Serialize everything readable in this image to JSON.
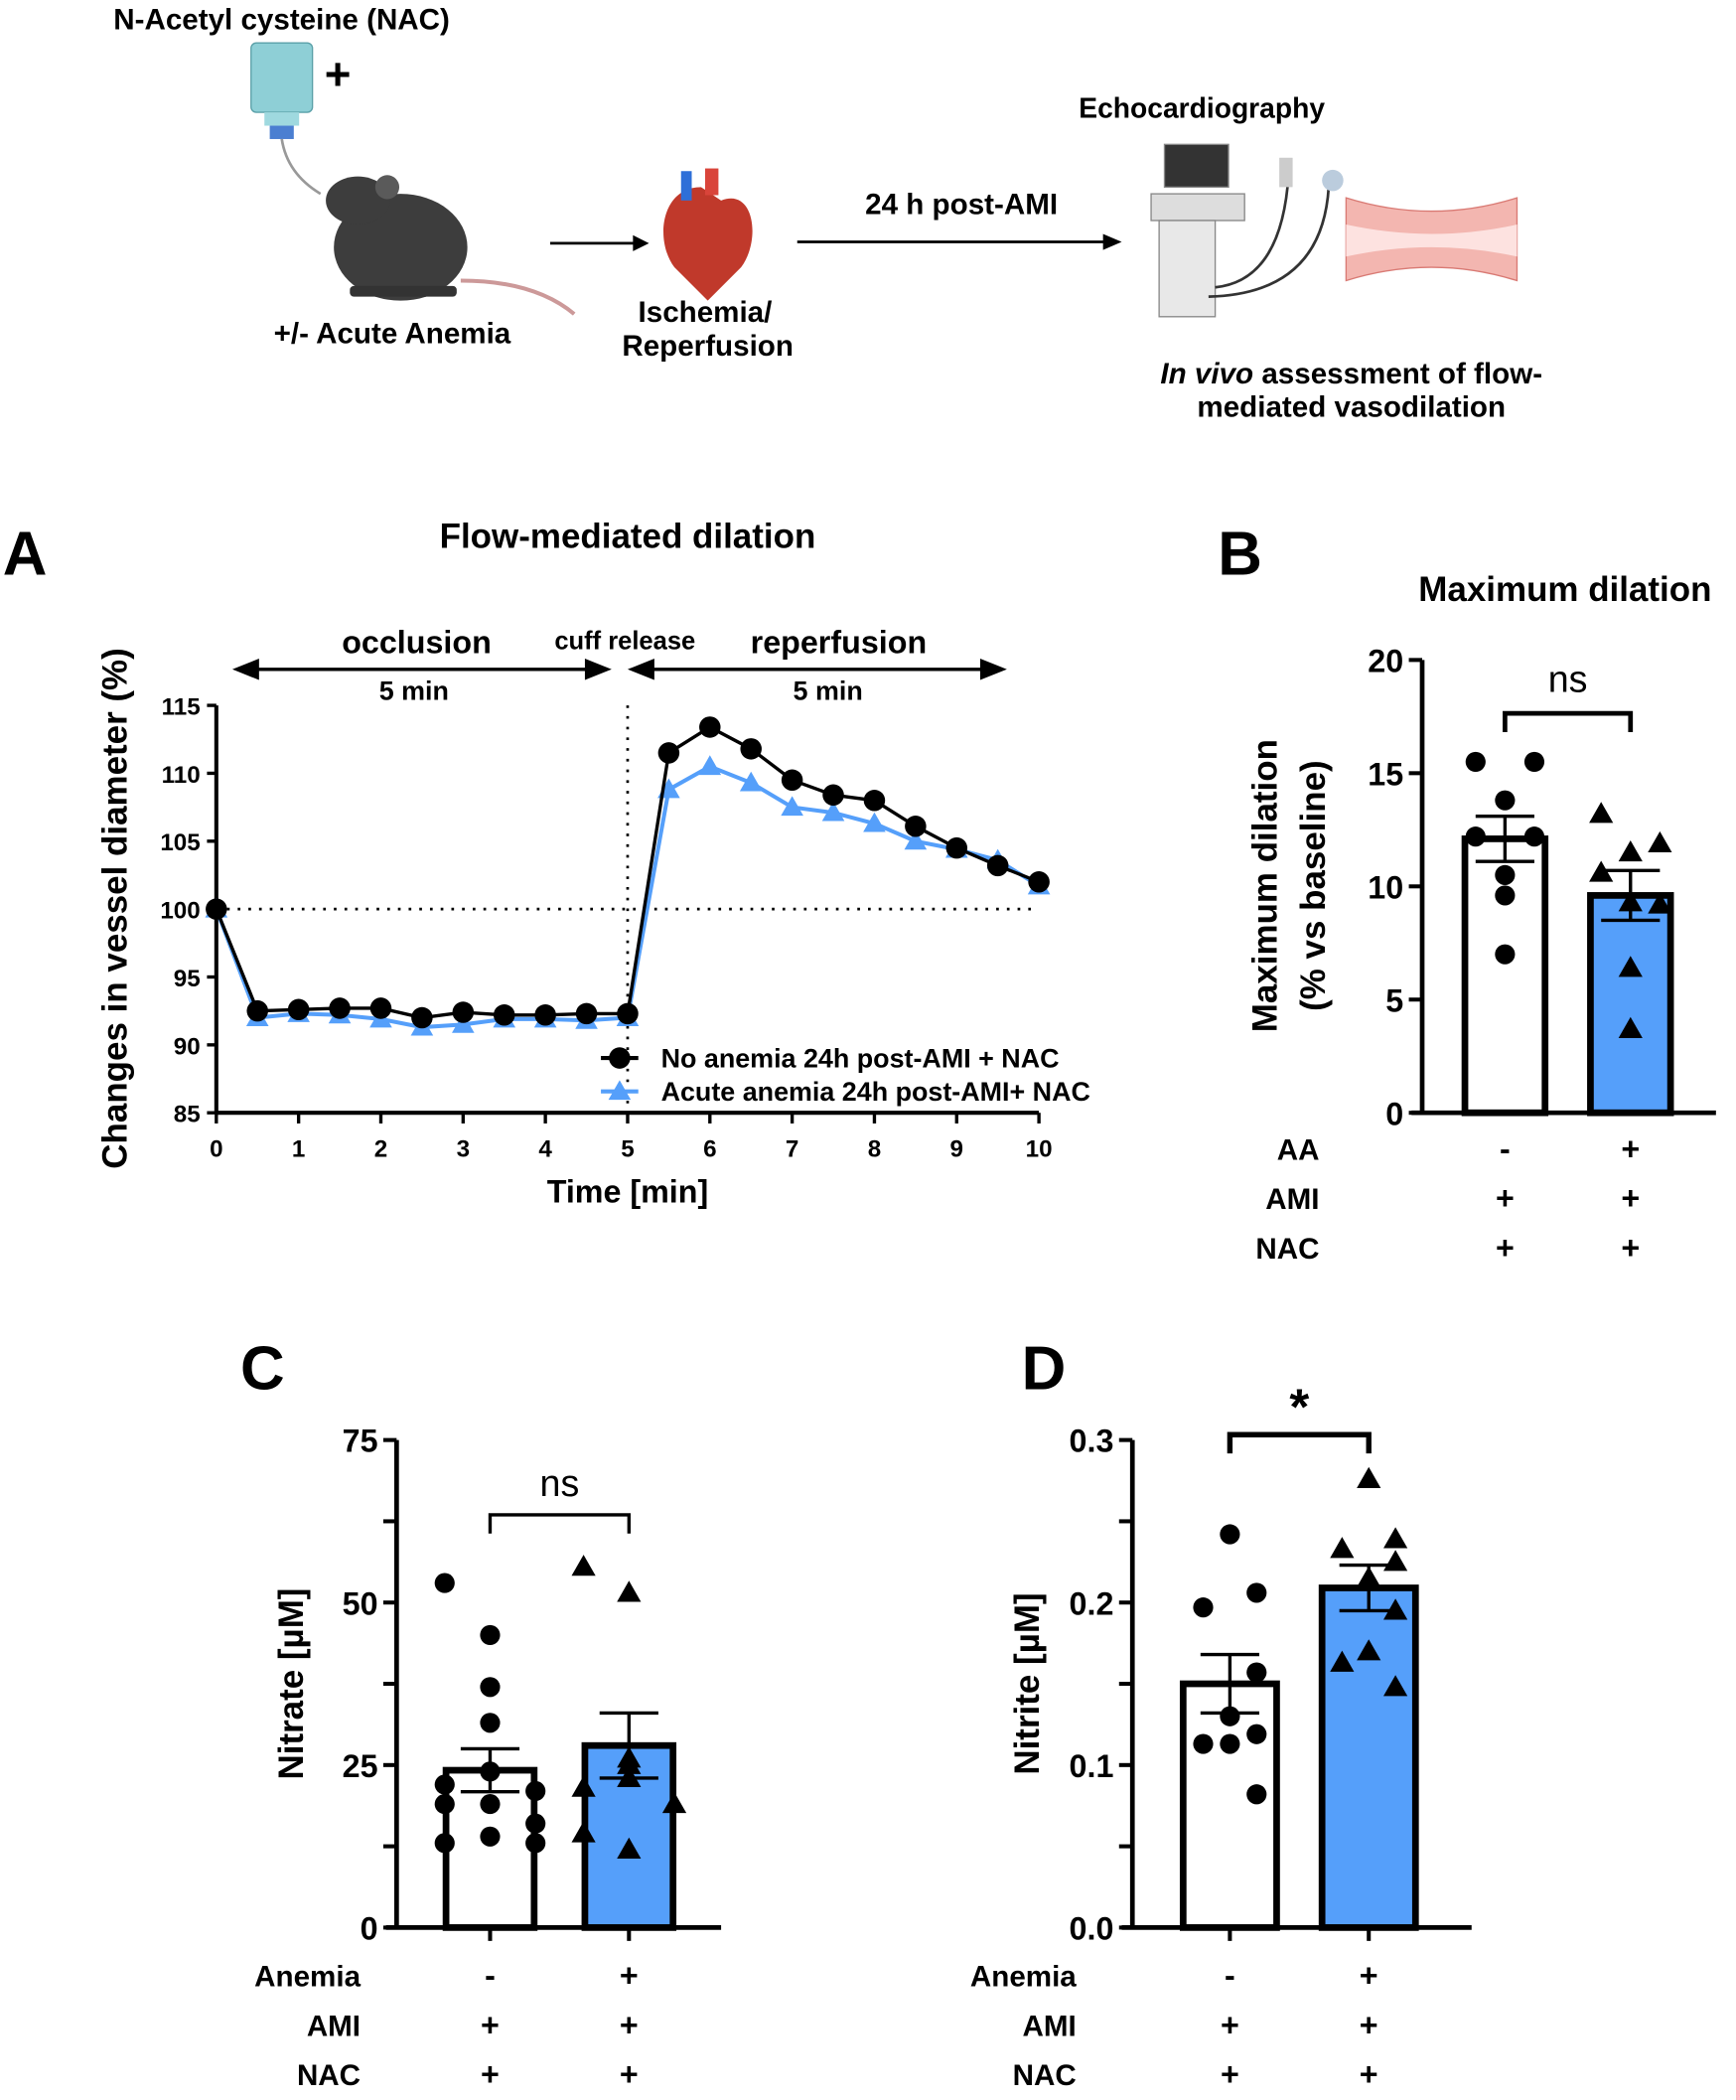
{
  "schematic": {
    "nac_label": "N-Acetyl cysteine (NAC)",
    "plus": "+",
    "anemia_label": "+/- Acute Anemia",
    "ischemia_label_1": "Ischemia/",
    "ischemia_label_2": "Reperfusion",
    "time_label": "24 h post-AMI",
    "echo_label": "Echocardiography",
    "assessment_italic": "In vivo",
    "assessment_rest": " assessment of flow-",
    "assessment_line2": "mediated vasodilation"
  },
  "colors": {
    "blue": "#559ffa",
    "black": "#000000"
  },
  "chart_data": [
    {
      "panel": "A",
      "type": "line",
      "title": "Flow-mediated dilation",
      "xlabel": "Time [min]",
      "ylabel": "Changes in  vessel  diameter (%)",
      "xlim": [
        0,
        10
      ],
      "ylim": [
        85,
        115
      ],
      "xticks": [
        "0",
        "1",
        "2",
        "3",
        "4",
        "5",
        "6",
        "7",
        "8",
        "9",
        "10"
      ],
      "yticks": [
        "85",
        "90",
        "95",
        "100",
        "105",
        "110",
        "115"
      ],
      "annotations": {
        "occlusion": "occlusion",
        "occlusion_dur": "5 min",
        "cuff": "cuff release",
        "reperfusion": "reperfusion",
        "reperfusion_dur": "5 min"
      },
      "reference_lines": {
        "y": 100,
        "x": 5
      },
      "x": [
        0,
        0.5,
        1,
        1.5,
        2,
        2.5,
        3,
        3.5,
        4,
        4.5,
        5,
        5.5,
        6,
        6.5,
        7,
        7.5,
        8,
        8.5,
        9,
        9.5,
        10
      ],
      "series": [
        {
          "name": "No anemia 24h post-AMI + NAC",
          "marker": "circle",
          "color": "#000000",
          "values": [
            100,
            92.5,
            92.6,
            92.7,
            92.7,
            92.0,
            92.4,
            92.2,
            92.2,
            92.3,
            92.3,
            111.5,
            113.4,
            111.8,
            109.5,
            108.4,
            108.0,
            106.1,
            104.5,
            103.2,
            102.0
          ]
        },
        {
          "name": "Acute anemia 24h post-AMI+ NAC",
          "marker": "triangle",
          "color": "#559ffa",
          "values": [
            100,
            92.0,
            92.3,
            92.2,
            91.9,
            91.3,
            91.5,
            91.9,
            91.9,
            91.8,
            92.0,
            108.8,
            110.5,
            109.3,
            107.5,
            107.1,
            106.3,
            105.0,
            104.4,
            103.6,
            101.7
          ]
        }
      ],
      "legend": "bottom-right"
    },
    {
      "panel": "B",
      "type": "bar",
      "title": "Maximum dilation",
      "ylabel_1": "Maximum dilation",
      "ylabel_2": "(% vs baseline)",
      "ylim": [
        0,
        20
      ],
      "yticks": [
        "0",
        "5",
        "10",
        "15",
        "20"
      ],
      "significance": "ns",
      "row_labels": [
        "AA",
        "AMI",
        "NAC"
      ],
      "groups": [
        {
          "conditions": [
            "-",
            "+",
            "+"
          ],
          "mean": 12.1,
          "sem": 1.0,
          "fill": "#ffffff",
          "marker": "circle",
          "points": [
            15.5,
            15.5,
            13.8,
            12.2,
            12.2,
            10.5,
            9.6,
            7.0
          ]
        },
        {
          "conditions": [
            "+",
            "+",
            "+"
          ],
          "mean": 9.6,
          "sem": 1.1,
          "fill": "#559ffa",
          "marker": "triangle",
          "points": [
            13.2,
            11.9,
            11.5,
            10.6,
            9.2,
            9.3,
            6.4,
            3.7
          ]
        }
      ]
    },
    {
      "panel": "C",
      "type": "bar",
      "ylabel": "Nitrate [µM]",
      "ylim": [
        0,
        75
      ],
      "yticks": [
        "0",
        "25",
        "50",
        "75"
      ],
      "significance": "ns",
      "row_labels": [
        "Anemia",
        "AMI",
        "NAC"
      ],
      "groups": [
        {
          "conditions": [
            "-",
            "+",
            "+"
          ],
          "mean": 24.2,
          "sem": 3.3,
          "fill": "#ffffff",
          "marker": "circle",
          "points": [
            53,
            45,
            37,
            31.5,
            24,
            22,
            21,
            19,
            19,
            16,
            14,
            13,
            13
          ]
        },
        {
          "conditions": [
            "+",
            "+",
            "+"
          ],
          "mean": 28.0,
          "sem": 5.0,
          "fill": "#559ffa",
          "marker": "triangle",
          "points": [
            55.5,
            51.5,
            26,
            25,
            23,
            21.5,
            19,
            14.5,
            12
          ]
        }
      ]
    },
    {
      "panel": "D",
      "type": "bar",
      "ylabel": "Nitrite [µM]",
      "ylim": [
        0,
        0.3
      ],
      "yticks": [
        "0.0",
        "0.1",
        "0.2",
        "0.3"
      ],
      "significance": "*",
      "row_labels": [
        "Anemia",
        "AMI",
        "NAC"
      ],
      "groups": [
        {
          "conditions": [
            "-",
            "+",
            "+"
          ],
          "mean": 0.15,
          "sem": 0.018,
          "fill": "#ffffff",
          "marker": "circle",
          "points": [
            0.242,
            0.206,
            0.197,
            0.157,
            0.13,
            0.119,
            0.113,
            0.113,
            0.082
          ]
        },
        {
          "conditions": [
            "+",
            "+",
            "+"
          ],
          "mean": 0.209,
          "sem": 0.014,
          "fill": "#559ffa",
          "marker": "triangle",
          "points": [
            0.276,
            0.239,
            0.233,
            0.225,
            0.215,
            0.195,
            0.17,
            0.163,
            0.148
          ]
        }
      ]
    }
  ]
}
